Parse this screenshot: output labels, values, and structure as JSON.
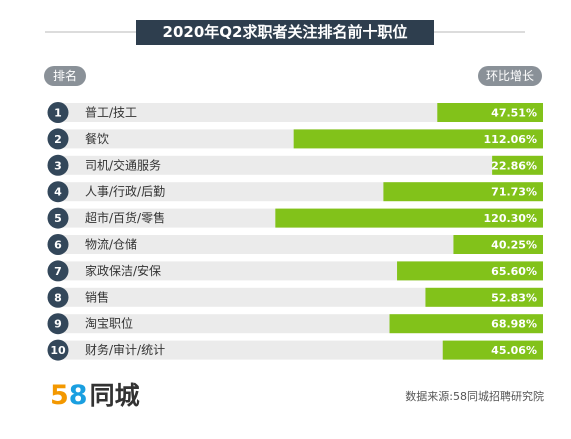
{
  "title": "2020年Q2求职者关注排名前十职位",
  "header": {
    "rank_label": "排名",
    "growth_label": "环比增长"
  },
  "colors": {
    "bar": "#82c21a",
    "row_background": "#ebebeb",
    "badge": "#33475a",
    "title_background": "#2e3e4e"
  },
  "chart_data": {
    "type": "bar",
    "orientation": "horizontal",
    "ranks": [
      "1",
      "2",
      "3",
      "4",
      "5",
      "6",
      "7",
      "8",
      "9",
      "10"
    ],
    "categories": [
      "普工/技工",
      "餐饮",
      "司机/交通服务",
      "人事/行政/后勤",
      "超市/百货/零售",
      "物流/仓储",
      "家政保洁/安保",
      "销售",
      "淘宝职位",
      "财务/审计/统计"
    ],
    "values": [
      47.51,
      112.06,
      22.86,
      71.73,
      120.3,
      40.25,
      65.6,
      52.83,
      68.98,
      45.06
    ],
    "value_labels": [
      "47.51%",
      "112.06%",
      "22.86%",
      "71.73%",
      "120.30%",
      "40.25%",
      "65.60%",
      "52.83%",
      "68.98%",
      "45.06%"
    ],
    "unit": "%",
    "bar_direction": "right-aligned"
  },
  "logo": {
    "digit1": "5",
    "digit2": "8",
    "text": "同城"
  },
  "source": "数据来源:58同城招聘研究院"
}
